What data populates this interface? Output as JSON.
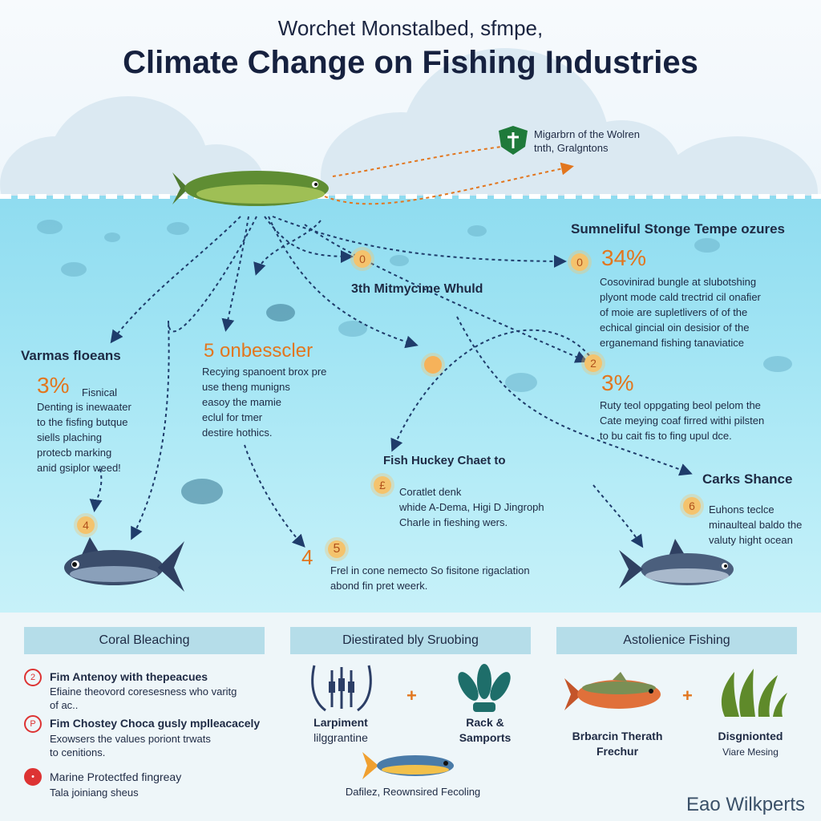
{
  "header": {
    "subtitle": "Worchet Monstalbed, sfmpe,",
    "title": "Climate Change on Fishing Industries"
  },
  "map_note": {
    "line1": "Migarbrn of the Wolren",
    "line2": "tnth, Gralgntons"
  },
  "center_label": "3th Mitmycime Whuld",
  "sections": {
    "left": {
      "heading": "Varmas floeans",
      "pct": "3%",
      "pct_text": "Fisnical",
      "lines": [
        "Denting is inewaater",
        "to the fisfing butque",
        "siells plaching",
        "protecb marking",
        "anid gsiplor weed!"
      ],
      "badge": "4"
    },
    "mid_left": {
      "heading": "5 onbesscler",
      "lines": [
        "Recying spanoent brox pre",
        "use theng munigns",
        "easoy the mamie",
        "eclul for tmer",
        "destire hothics."
      ]
    },
    "top_right": {
      "heading": "Sumneliful Stonge Tempe ozures",
      "pct": "34%",
      "lines": [
        "Cosovinirad bungle at slubotshing",
        "plyont mode cald trectrid cil onafier",
        "of moie are supletlivers of of the",
        "echical gincial oin desisior of the",
        "erganemand fishing tanaviatice"
      ]
    },
    "mid_right": {
      "pct": "3%",
      "lines": [
        "Ruty teol oppgating beol pelom the",
        "Cate meying coaf firred withi pilsten",
        "to bu cait fis to fing upul dce."
      ],
      "badge": "2"
    },
    "center": {
      "heading": "Fish Huckey Chaet to",
      "badge": "£",
      "lines": [
        "Coratlet denk",
        "whide A-Dema, Higi D Jingroph",
        "Charle in fieshing wers."
      ]
    },
    "right": {
      "heading": "Carks Shance",
      "badge": "6",
      "lines": [
        "Euhons teclce",
        "minaulteal baldo the",
        "valuty hight ocean"
      ]
    },
    "bottom_center": {
      "num_a": "4",
      "num_b": "5",
      "lines": [
        "Frel in cone nemecto So fisitone rigaclation",
        "abond fin pret weerk."
      ]
    },
    "badges": [
      "0",
      "0"
    ]
  },
  "panels": {
    "coral": {
      "title": "Coral Bleaching",
      "items": [
        {
          "icon": "2",
          "title": "Fim Antenoy with thepeacues",
          "text": [
            "Efiaine theovord coresesness who varitg",
            "of ac.."
          ]
        },
        {
          "icon": "P",
          "title": "Fim Chostey Choca gusly mplleacacely",
          "text": [
            "Exowsers the values poriont trwats",
            "to cenitions."
          ]
        },
        {
          "icon": "•",
          "title": "Marine Protectfed fingreay",
          "text": [
            "Tala joiniang sheus"
          ]
        }
      ]
    },
    "distributed": {
      "title": "Diestirated bly Sruobing",
      "plus": "+",
      "item1": {
        "title": "Larpiment",
        "sub": "lilggrantine"
      },
      "item2": {
        "title": "Rack &",
        "sub": "Samports"
      },
      "caption": "Dafilez, Reownsired Fecoling"
    },
    "aquaculture": {
      "title": "Astolienice Fishing",
      "plus": "+",
      "item1": {
        "title": "Brbarcin Therath",
        "sub": "Frechur"
      },
      "item2": {
        "title": "Disgnionted",
        "sub": "Viare Mesing"
      }
    }
  },
  "brand": "Eao Wilkperts",
  "colors": {
    "accent": "#e2761e",
    "sea": "#9ee3f3",
    "panel": "#b5dde9",
    "fish_dark": "#3b4d6b",
    "fish_green": "#4f7a30"
  }
}
